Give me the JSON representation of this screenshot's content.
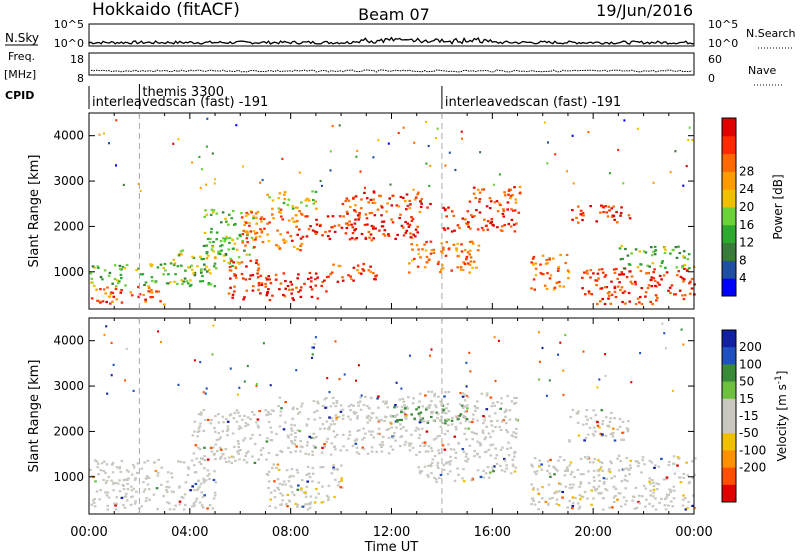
{
  "header": {
    "station": "Hokkaido (fitACF)",
    "beam": "Beam 07",
    "date": "19/Jun/2016"
  },
  "strip": {
    "nsky_label": "N.Sky",
    "nsky_ticks": [
      "10^5",
      "10^0"
    ],
    "nsearch_label": "N.Search",
    "nsearch_ticks": [
      "10^5",
      "10^0"
    ],
    "freq_label_1": "Freq.",
    "freq_label_2": "[MHz]",
    "freq_ticks": [
      "18",
      "8"
    ],
    "nave_label": "Nave",
    "nave_ticks": [
      "60",
      "0"
    ],
    "cpid_label": "CPID",
    "cpid_segments": [
      {
        "label": "interleavedscan (fast) -191",
        "start_hour": 0
      },
      {
        "label": "themis 3300",
        "start_hour": 2
      },
      {
        "label": "interleavedscan (fast) -191",
        "start_hour": 14
      }
    ]
  },
  "chart_data": [
    {
      "type": "heatmap",
      "parameter": "power",
      "ylabel": "Slant Range [km]",
      "yticks": [
        1000,
        2000,
        3000,
        4000
      ],
      "ylim": [
        180,
        4500
      ],
      "xlim": [
        0,
        24
      ],
      "colorbar": {
        "title": "Power [dB]",
        "ticks": [
          4,
          8,
          12,
          16,
          20,
          24,
          28
        ],
        "colors": [
          "#0000ff",
          "#1f4fa0",
          "#3a7a3a",
          "#2ea82e",
          "#6cd23a",
          "#f0c000",
          "#ff9a00",
          "#ff6a00",
          "#ff2a00",
          "#e00000"
        ]
      },
      "echo_regions": [
        {
          "t0": 0.0,
          "t1": 3.0,
          "r0": 300,
          "r1": 700,
          "dB": 24
        },
        {
          "t0": 0.0,
          "t1": 5.0,
          "r0": 700,
          "r1": 1200,
          "dB": 12
        },
        {
          "t0": 3.0,
          "t1": 6.0,
          "r0": 1100,
          "r1": 1500,
          "dB": 14
        },
        {
          "t0": 4.5,
          "t1": 6.5,
          "r0": 1400,
          "r1": 2400,
          "dB": 13
        },
        {
          "t0": 5.5,
          "t1": 7.0,
          "r0": 400,
          "r1": 1300,
          "dB": 26
        },
        {
          "t0": 6.0,
          "t1": 8.5,
          "r0": 1500,
          "r1": 2400,
          "dB": 22
        },
        {
          "t0": 7.0,
          "t1": 9.5,
          "r0": 400,
          "r1": 1000,
          "dB": 28
        },
        {
          "t0": 7.0,
          "t1": 9.0,
          "r0": 2400,
          "r1": 2800,
          "dB": 16
        },
        {
          "t0": 8.0,
          "t1": 13.0,
          "r0": 1700,
          "r1": 2300,
          "dB": 27
        },
        {
          "t0": 9.5,
          "t1": 11.5,
          "r0": 800,
          "r1": 1200,
          "dB": 24
        },
        {
          "t0": 10.0,
          "t1": 13.5,
          "r0": 2300,
          "r1": 2800,
          "dB": 25
        },
        {
          "t0": 12.5,
          "t1": 15.5,
          "r0": 1000,
          "r1": 1700,
          "dB": 22
        },
        {
          "t0": 14.0,
          "t1": 17.0,
          "r0": 1900,
          "r1": 2500,
          "dB": 26
        },
        {
          "t0": 15.0,
          "t1": 17.2,
          "r0": 2500,
          "r1": 2900,
          "dB": 24
        },
        {
          "t0": 17.5,
          "t1": 19.0,
          "r0": 600,
          "r1": 1400,
          "dB": 22
        },
        {
          "t0": 19.0,
          "t1": 21.5,
          "r0": 2100,
          "r1": 2500,
          "dB": 26
        },
        {
          "t0": 19.5,
          "t1": 24.0,
          "r0": 300,
          "r1": 1100,
          "dB": 26
        },
        {
          "t0": 21.0,
          "t1": 24.0,
          "r0": 1100,
          "r1": 1600,
          "dB": 12
        }
      ]
    },
    {
      "type": "heatmap",
      "parameter": "velocity",
      "ylabel": "Slant Range [km]",
      "xlabel": "Time UT",
      "yticks": [
        1000,
        2000,
        3000,
        4000
      ],
      "xticks": [
        "00:00",
        "04:00",
        "08:00",
        "12:00",
        "16:00",
        "20:00",
        "00:00"
      ],
      "ylim": [
        180,
        4500
      ],
      "xlim": [
        0,
        24
      ],
      "colorbar": {
        "title": "Velocity [m s",
        "title_sup": "-1",
        "title_end": "]",
        "ticks": [
          200,
          100,
          50,
          15,
          -15,
          -50,
          -100,
          -200
        ],
        "colors": [
          "#1020a0",
          "#2050c0",
          "#3a8a3a",
          "#70c040",
          "#c8c8c0",
          "#c8c8c0",
          "#f0c000",
          "#ff9000",
          "#ff5000",
          "#e00000"
        ]
      },
      "echo_regions": [
        {
          "t0": 0.0,
          "t1": 5.0,
          "r0": 300,
          "r1": 1400,
          "v": -5
        },
        {
          "t0": 4.0,
          "t1": 7.0,
          "r0": 1300,
          "r1": 2500,
          "v": 5
        },
        {
          "t0": 7.0,
          "t1": 10.0,
          "r0": 300,
          "r1": 1300,
          "v": -8
        },
        {
          "t0": 7.0,
          "t1": 13.0,
          "r0": 1500,
          "r1": 2800,
          "v": 3
        },
        {
          "t0": 12.0,
          "t1": 15.0,
          "r0": 2200,
          "r1": 2600,
          "v": 40
        },
        {
          "t0": 13.0,
          "t1": 17.0,
          "r0": 900,
          "r1": 2900,
          "v": 5
        },
        {
          "t0": 17.5,
          "t1": 24.0,
          "r0": 300,
          "r1": 1500,
          "v": -6
        },
        {
          "t0": 19.0,
          "t1": 21.5,
          "r0": 1800,
          "r1": 2500,
          "v": 4
        }
      ]
    }
  ]
}
